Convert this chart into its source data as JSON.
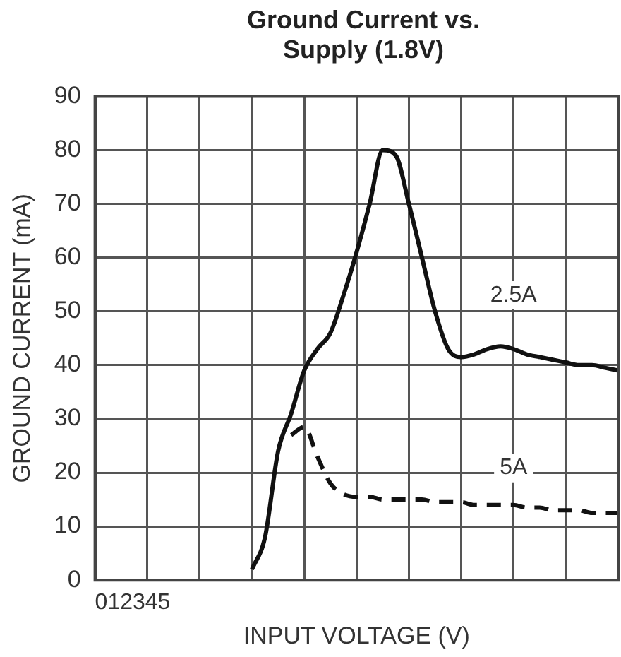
{
  "chart_data": {
    "type": "line",
    "title": "Ground Current vs. Supply (1.8V)",
    "xlabel": "INPUT VOLTAGE (V)",
    "ylabel": "GROUND CURRENT (mA)",
    "categories": [
      null,
      null,
      null,
      null,
      null,
      null,
      null,
      null,
      null,
      null,
      null,
      null,
      null,
      null,
      null,
      null,
      null,
      null,
      null,
      null,
      null,
      null,
      null,
      null,
      null,
      null,
      null,
      null,
      null,
      null,
      null,
      null,
      null,
      null,
      null,
      null,
      null,
      null,
      null,
      null,
      null
    ],
    "series": [
      {
        "name": "2.5A",
        "color": "#111111",
        "line_style": "solid",
        "values": [
          null,
          null,
          null,
          null,
          null,
          null,
          null,
          null,
          null,
          null,
          null,
          null,
          2,
          8,
          24,
          31,
          39,
          43,
          46,
          53,
          61,
          70,
          80,
          79,
          70,
          60,
          50,
          43,
          41.5,
          42,
          43,
          43.5,
          43,
          42,
          41.5,
          41,
          40.5,
          40,
          40,
          39.5,
          39
        ]
      },
      {
        "name": "5A",
        "color": "#111111",
        "line_style": "dashed",
        "values": [
          null,
          null,
          null,
          null,
          null,
          null,
          null,
          null,
          null,
          null,
          null,
          null,
          null,
          null,
          null,
          27,
          28.5,
          23,
          18,
          16,
          15.5,
          15.5,
          15,
          15,
          15,
          15,
          14.5,
          14.5,
          14.5,
          14,
          14,
          14,
          14,
          13.5,
          13.5,
          13,
          13,
          13,
          12.5,
          12.5,
          12.5
        ]
      }
    ],
    "ylim": [
      0,
      90
    ],
    "yticks": [
      0,
      10,
      20,
      30,
      40,
      50,
      60,
      70,
      80,
      90
    ],
    "grid": true,
    "tick_labels": "y",
    "legend": false,
    "marker": "none",
    "annotations": [
      "012345"
    ]
  }
}
